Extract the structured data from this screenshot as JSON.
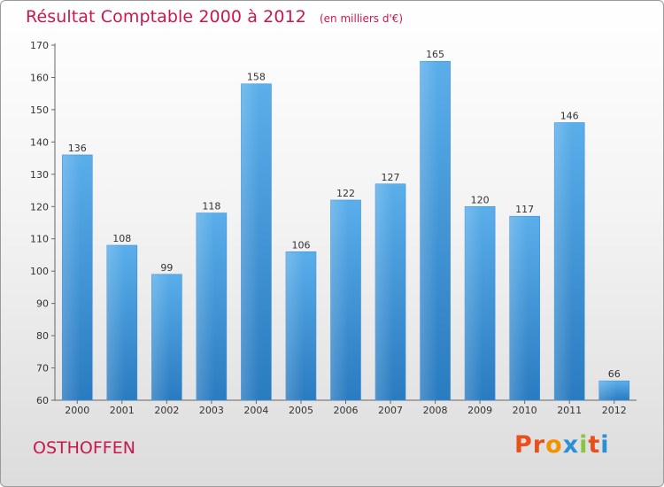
{
  "header": {
    "title": "Résultat Comptable 2000 à 2012",
    "subtitle": "(en milliers d'€)"
  },
  "footer": {
    "location": "OSTHOFFEN",
    "brand": "Proxiti"
  },
  "colors": {
    "title": "#c8184e",
    "bar_light": "#5aaeea",
    "bar_dark": "#2a7bc0",
    "brand_letters": [
      "#e94e1b",
      "#e94e1b",
      "#f39200",
      "#2a8fd6",
      "#8bc53f",
      "#e94e1b",
      "#2a8fd6"
    ]
  },
  "chart_data": {
    "type": "bar",
    "categories": [
      "2000",
      "2001",
      "2002",
      "2003",
      "2004",
      "2005",
      "2006",
      "2007",
      "2008",
      "2009",
      "2010",
      "2011",
      "2012"
    ],
    "values": [
      136,
      108,
      99,
      118,
      158,
      106,
      122,
      127,
      165,
      120,
      117,
      146,
      66
    ],
    "ylim": [
      60,
      170
    ],
    "yticks": [
      60,
      70,
      80,
      90,
      100,
      110,
      120,
      130,
      140,
      150,
      160,
      170
    ],
    "grid": false,
    "data_labels": true
  }
}
